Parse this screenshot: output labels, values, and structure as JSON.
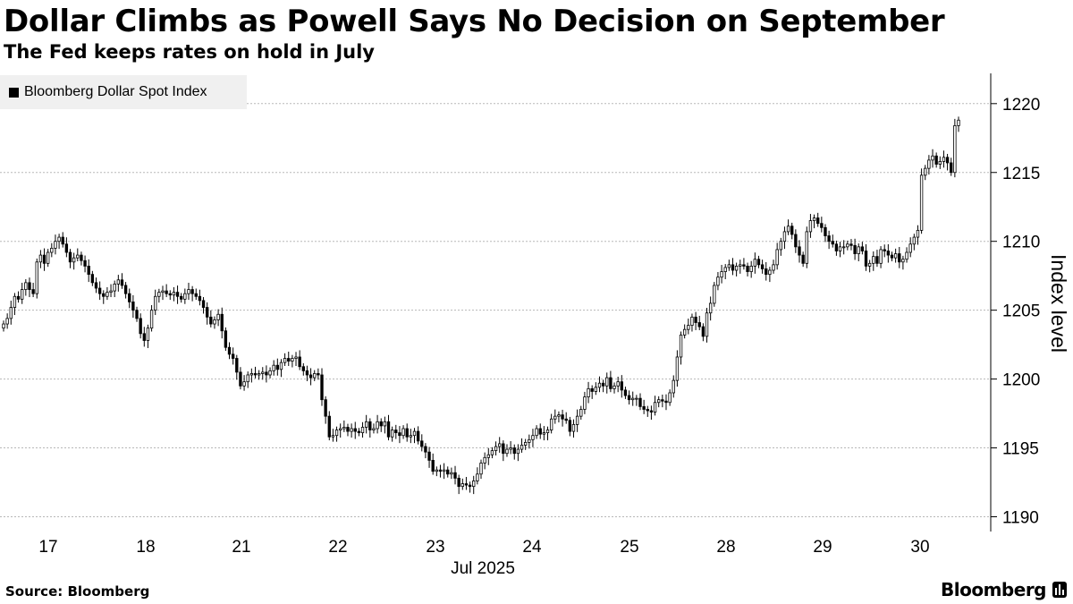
{
  "headline": "Dollar Climbs as Powell Says No Decision on September",
  "subheadline": "The Fed keeps rates on hold in July",
  "source": "Source: Bloomberg",
  "brand": "Bloomberg",
  "chart_data": {
    "type": "candlestick",
    "title": "Dollar Climbs as Powell Says No Decision on September",
    "subtitle": "The Fed keeps rates on hold in July",
    "legend": [
      "Bloomberg Dollar Spot Index"
    ],
    "legend_position": "top-left",
    "ylabel": "Index level",
    "xlabel": "Jul 2025",
    "ylim": [
      1189.5,
      1220.5
    ],
    "yticks": [
      1190,
      1195,
      1200,
      1205,
      1210,
      1215,
      1220
    ],
    "grid": "horizontal dotted",
    "y_axis_position": "right",
    "x_tick_labels": [
      "17",
      "18",
      "21",
      "22",
      "23",
      "24",
      "25",
      "28",
      "29",
      "30"
    ],
    "series": [
      {
        "name": "Bloomberg Dollar Spot Index",
        "close": [
          1204.0,
          1204.4,
          1205.2,
          1206.0,
          1205.8,
          1206.5,
          1207.0,
          1206.5,
          1206.2,
          1208.5,
          1209.0,
          1208.4,
          1209.2,
          1209.5,
          1210.0,
          1210.3,
          1209.8,
          1209.2,
          1208.5,
          1208.8,
          1209.0,
          1208.6,
          1208.2,
          1207.6,
          1207.0,
          1206.6,
          1206.2,
          1206.0,
          1206.3,
          1206.4,
          1206.9,
          1207.2,
          1206.8,
          1206.2,
          1205.6,
          1205.0,
          1204.4,
          1203.3,
          1202.8,
          1203.7,
          1205.0,
          1206.0,
          1206.3,
          1206.4,
          1206.2,
          1206.1,
          1206.3,
          1206.0,
          1205.8,
          1206.2,
          1206.5,
          1206.2,
          1206.0,
          1205.7,
          1205.2,
          1204.5,
          1204.0,
          1204.3,
          1204.7,
          1203.5,
          1202.3,
          1201.8,
          1201.5,
          1200.5,
          1199.5,
          1199.8,
          1200.3,
          1200.4,
          1200.3,
          1200.4,
          1200.5,
          1200.3,
          1200.6,
          1201.0,
          1200.7,
          1201.2,
          1201.5,
          1201.3,
          1201.5,
          1201.6,
          1200.9,
          1200.6,
          1200.3,
          1200.1,
          1200.4,
          1200.3,
          1198.5,
          1197.3,
          1195.8,
          1195.9,
          1196.3,
          1196.4,
          1196.5,
          1196.2,
          1196.4,
          1196.2,
          1196.1,
          1196.5,
          1196.9,
          1196.3,
          1196.4,
          1196.9,
          1196.6,
          1196.9,
          1195.8,
          1196.3,
          1196.1,
          1195.9,
          1196.4,
          1195.8,
          1195.9,
          1196.2,
          1195.5,
          1195.1,
          1194.7,
          1194.1,
          1193.3,
          1193.4,
          1193.3,
          1193.4,
          1193.1,
          1193.2,
          1192.8,
          1192.2,
          1192.4,
          1192.3,
          1192.2,
          1192.6,
          1193.1,
          1193.9,
          1194.3,
          1194.5,
          1194.8,
          1195.1,
          1195.3,
          1194.6,
          1194.9,
          1195.0,
          1194.6,
          1194.9,
          1195.2,
          1195.4,
          1195.6,
          1195.9,
          1196.4,
          1196.0,
          1196.1,
          1196.3,
          1197.1,
          1197.3,
          1197.4,
          1197.1,
          1197.0,
          1196.2,
          1196.7,
          1197.3,
          1197.8,
          1198.7,
          1199.3,
          1199.1,
          1199.4,
          1199.7,
          1199.5,
          1200.1,
          1199.3,
          1199.5,
          1199.8,
          1199.2,
          1198.8,
          1198.5,
          1198.6,
          1198.6,
          1198.0,
          1197.8,
          1197.7,
          1197.6,
          1198.3,
          1198.5,
          1198.4,
          1198.3,
          1199.0,
          1199.9,
          1201.6,
          1203.2,
          1203.6,
          1203.9,
          1204.5,
          1204.1,
          1203.8,
          1203.1,
          1204.8,
          1205.5,
          1206.8,
          1207.4,
          1207.8,
          1208.1,
          1208.3,
          1207.9,
          1208.2,
          1208.3,
          1208.2,
          1207.8,
          1208.2,
          1208.7,
          1208.3,
          1208.0,
          1207.6,
          1207.9,
          1208.3,
          1209.4,
          1210.0,
          1210.7,
          1211.1,
          1210.5,
          1209.6,
          1209.0,
          1208.4,
          1210.7,
          1211.5,
          1211.7,
          1211.3,
          1211.0,
          1210.4,
          1210.0,
          1209.8,
          1209.3,
          1209.6,
          1209.6,
          1209.8,
          1209.7,
          1209.1,
          1209.6,
          1209.3,
          1208.2,
          1208.4,
          1208.9,
          1208.4,
          1209.4,
          1209.3,
          1209.0,
          1208.8,
          1209.1,
          1208.5,
          1208.7,
          1209.2,
          1209.8,
          1210.3,
          1210.8,
          1214.8,
          1215.3,
          1215.9,
          1216.2,
          1215.6,
          1215.8,
          1216.1,
          1215.7,
          1215.0,
          1218.4,
          1218.8
        ]
      }
    ]
  }
}
